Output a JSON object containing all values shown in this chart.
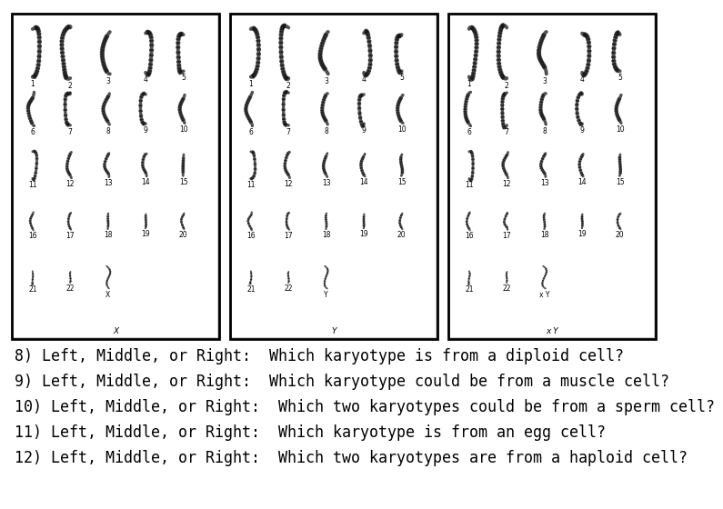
{
  "questions": [
    "8) Left, Middle, or Right:  Which karyotype is from a diploid cell?",
    "9) Left, Middle, or Right:  Which karyotype could be from a muscle cell?",
    "10) Left, Middle, or Right:  Which two karyotypes could be from a sperm cell?",
    "11) Left, Middle, or Right:  Which karyotype is from an egg cell?",
    "12) Left, Middle, or Right:  Which two karyotypes are from a haploid cell?"
  ],
  "panel_sex_labels": [
    "X",
    "Y",
    "x Y"
  ],
  "bg_color": "#ffffff",
  "text_color": "#000000",
  "question_fontsize": 12,
  "panel_border_color": "#000000",
  "chr_color": "#555555",
  "chr_bg": "#d8d8d8"
}
